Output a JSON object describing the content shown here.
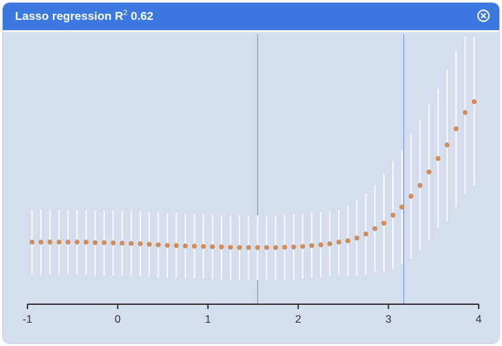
{
  "window": {
    "title_main": "Lasso regression R",
    "title_sup": "2",
    "title_value": " 0.62",
    "close_icon": "close-circle-icon"
  },
  "colors": {
    "titlebar": "#3b78e0",
    "plot_background": "#d5deed",
    "point": "#d08c5a",
    "error_bar": "#ffffff",
    "vertical_marker": "#6f9be0",
    "axis": "#333333"
  },
  "chart_data": {
    "type": "scatter",
    "title": "",
    "xlabel": "",
    "ylabel": "",
    "xlim": [
      -1,
      4
    ],
    "ylim": [
      0,
      10
    ],
    "x_ticks": [
      -1,
      0,
      1,
      2,
      3,
      4
    ],
    "x_tick_labels": [
      "-1",
      "0",
      "1",
      "2",
      "3",
      "4"
    ],
    "vertical_lines": [
      1.55,
      3.17
    ],
    "grid": false,
    "legend": "none",
    "error_bars": true,
    "points": [
      {
        "x": -0.95,
        "y": 2.3,
        "err": 1.2
      },
      {
        "x": -0.85,
        "y": 2.3,
        "err": 1.2
      },
      {
        "x": -0.75,
        "y": 2.3,
        "err": 1.2
      },
      {
        "x": -0.65,
        "y": 2.3,
        "err": 1.2
      },
      {
        "x": -0.55,
        "y": 2.3,
        "err": 1.2
      },
      {
        "x": -0.45,
        "y": 2.3,
        "err": 1.2
      },
      {
        "x": -0.35,
        "y": 2.3,
        "err": 1.2
      },
      {
        "x": -0.25,
        "y": 2.28,
        "err": 1.2
      },
      {
        "x": -0.15,
        "y": 2.28,
        "err": 1.2
      },
      {
        "x": -0.05,
        "y": 2.27,
        "err": 1.2
      },
      {
        "x": 0.05,
        "y": 2.26,
        "err": 1.2
      },
      {
        "x": 0.15,
        "y": 2.25,
        "err": 1.2
      },
      {
        "x": 0.25,
        "y": 2.24,
        "err": 1.2
      },
      {
        "x": 0.35,
        "y": 2.22,
        "err": 1.2
      },
      {
        "x": 0.45,
        "y": 2.2,
        "err": 1.2
      },
      {
        "x": 0.55,
        "y": 2.18,
        "err": 1.2
      },
      {
        "x": 0.65,
        "y": 2.17,
        "err": 1.2
      },
      {
        "x": 0.75,
        "y": 2.16,
        "err": 1.2
      },
      {
        "x": 0.85,
        "y": 2.15,
        "err": 1.2
      },
      {
        "x": 0.95,
        "y": 2.14,
        "err": 1.2
      },
      {
        "x": 1.05,
        "y": 2.13,
        "err": 1.2
      },
      {
        "x": 1.15,
        "y": 2.12,
        "err": 1.2
      },
      {
        "x": 1.25,
        "y": 2.11,
        "err": 1.2
      },
      {
        "x": 1.35,
        "y": 2.1,
        "err": 1.2
      },
      {
        "x": 1.45,
        "y": 2.1,
        "err": 1.2
      },
      {
        "x": 1.55,
        "y": 2.1,
        "err": 1.2
      },
      {
        "x": 1.65,
        "y": 2.1,
        "err": 1.2
      },
      {
        "x": 1.75,
        "y": 2.1,
        "err": 1.2
      },
      {
        "x": 1.85,
        "y": 2.11,
        "err": 1.2
      },
      {
        "x": 1.95,
        "y": 2.12,
        "err": 1.2
      },
      {
        "x": 2.05,
        "y": 2.14,
        "err": 1.2
      },
      {
        "x": 2.15,
        "y": 2.17,
        "err": 1.2
      },
      {
        "x": 2.25,
        "y": 2.2,
        "err": 1.2
      },
      {
        "x": 2.35,
        "y": 2.24,
        "err": 1.2
      },
      {
        "x": 2.45,
        "y": 2.3,
        "err": 1.2
      },
      {
        "x": 2.55,
        "y": 2.35,
        "err": 1.3
      },
      {
        "x": 2.65,
        "y": 2.45,
        "err": 1.4
      },
      {
        "x": 2.75,
        "y": 2.6,
        "err": 1.5
      },
      {
        "x": 2.85,
        "y": 2.8,
        "err": 1.6
      },
      {
        "x": 2.95,
        "y": 3.0,
        "err": 1.8
      },
      {
        "x": 3.05,
        "y": 3.3,
        "err": 2.0
      },
      {
        "x": 3.15,
        "y": 3.6,
        "err": 2.1
      },
      {
        "x": 3.25,
        "y": 4.0,
        "err": 2.3
      },
      {
        "x": 3.35,
        "y": 4.4,
        "err": 2.4
      },
      {
        "x": 3.45,
        "y": 4.9,
        "err": 2.5
      },
      {
        "x": 3.55,
        "y": 5.4,
        "err": 2.6
      },
      {
        "x": 3.65,
        "y": 5.9,
        "err": 2.8
      },
      {
        "x": 3.75,
        "y": 6.5,
        "err": 2.9
      },
      {
        "x": 3.85,
        "y": 7.1,
        "err": 3.0
      },
      {
        "x": 3.95,
        "y": 7.5,
        "err": 3.1
      }
    ]
  }
}
